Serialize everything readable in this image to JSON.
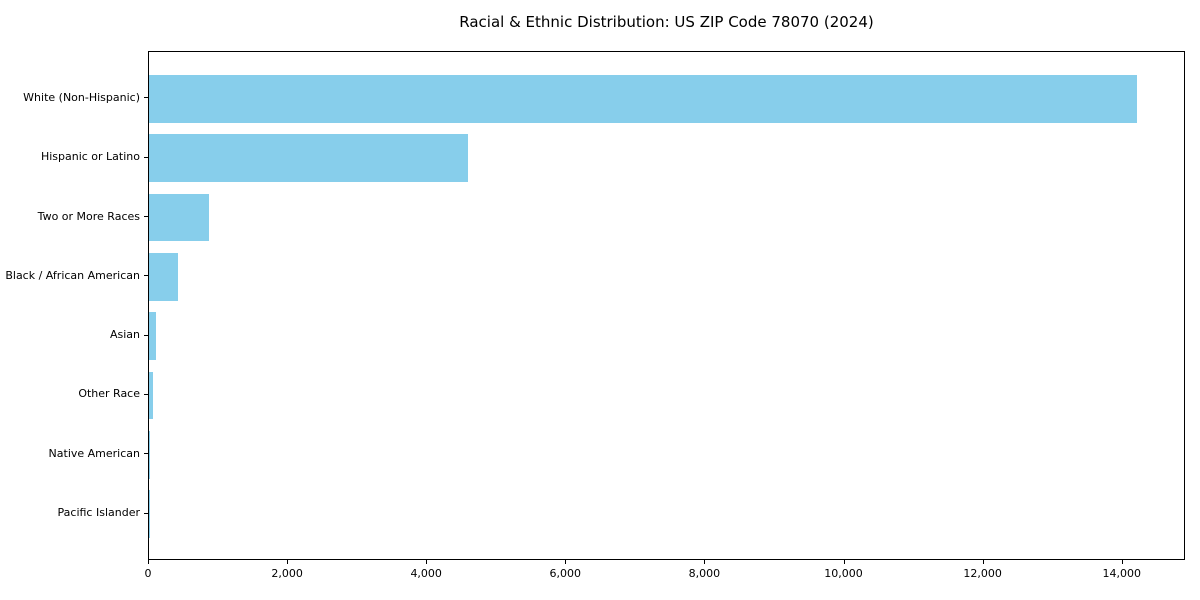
{
  "chart_data": {
    "type": "bar",
    "orientation": "horizontal",
    "title": "Racial & Ethnic Distribution: US ZIP Code 78070 (2024)",
    "categories": [
      "White (Non-Hispanic)",
      "Hispanic or Latino",
      "Two or More Races",
      "Black / African American",
      "Asian",
      "Other Race",
      "Native American",
      "Pacific Islander"
    ],
    "values": [
      14200,
      4580,
      860,
      420,
      105,
      60,
      15,
      5
    ],
    "xlabel": "",
    "ylabel": "",
    "xlim": [
      0,
      14910
    ],
    "xticks": [
      0,
      2000,
      4000,
      6000,
      8000,
      10000,
      12000,
      14000
    ],
    "xtick_labels": [
      "0",
      "2,000",
      "4,000",
      "6,000",
      "8,000",
      "10,000",
      "12,000",
      "14,000"
    ],
    "bar_color": "#87CEEB",
    "bar_color_name": "skyblue",
    "background_color": "#FFFFFF",
    "text_color": "#000000",
    "grid": false,
    "legend_position": "none"
  }
}
